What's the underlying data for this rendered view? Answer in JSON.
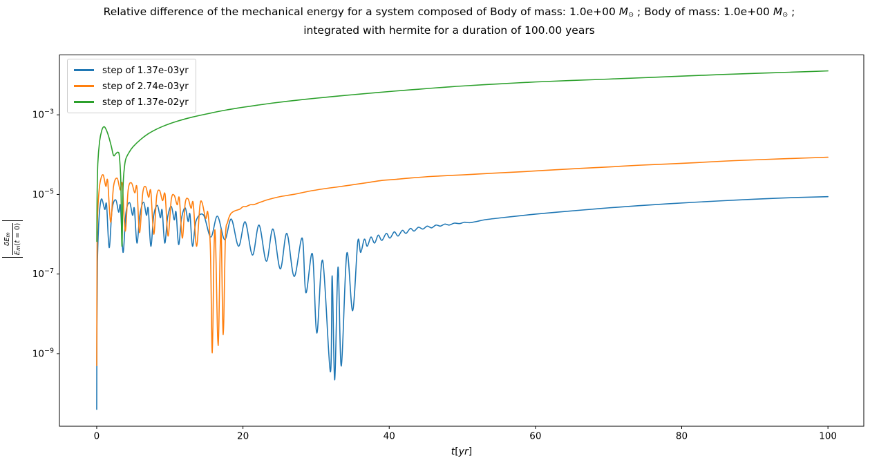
{
  "title": {
    "line1_a": "Relative difference of the mechanical energy for a system composed of Body of mass: 1.0e+00 ",
    "mass_symbol": "M",
    "sun_symbol": "⊙",
    "line1_b": " ; Body of mass: 1.0e+00 ",
    "line1_c": " ;",
    "line2": "integrated with hermite for a duration of 100.00 years"
  },
  "legend": {
    "items": [
      {
        "label": "step of 1.37e-03yr",
        "color": "#1f77b4"
      },
      {
        "label": "step of 2.74e-03yr",
        "color": "#ff7f0e"
      },
      {
        "label": "step of 1.37e-02yr",
        "color": "#2ca02c"
      }
    ]
  },
  "ylabel": {
    "bar": "|",
    "num_main": "δE",
    "num_sub": "m",
    "den_main": "E",
    "den_sub": "m",
    "den_open": "(",
    "den_t": "t",
    "den_rest": " = 0)"
  },
  "xlabel": {
    "t": "t",
    "open": "[",
    "unit": "yr",
    "close": "]"
  },
  "chart_data": {
    "type": "line",
    "title": "Relative difference of the mechanical energy for a system composed of Body of mass: 1.0e+00 M⊙ ; Body of mass: 1.0e+00 M⊙ ; integrated with hermite for a duration of 100.00 years",
    "xlabel": "t[yr]",
    "ylabel": "|δE_m / E_m(t=0)|",
    "legend_position": "upper left",
    "grid": false,
    "x_axis": {
      "min": -5.1,
      "max": 104.9,
      "ticks": [
        0,
        20,
        40,
        60,
        80,
        100
      ]
    },
    "y_axis": {
      "scale": "log",
      "min": 1.5e-11,
      "max": 0.032,
      "ticks": [
        {
          "value": 0.001,
          "base": "10",
          "exponent": "−3"
        },
        {
          "value": 1e-05,
          "base": "10",
          "exponent": "−5"
        },
        {
          "value": 1e-07,
          "base": "10",
          "exponent": "−7"
        },
        {
          "value": 1e-09,
          "base": "10",
          "exponent": "−9"
        }
      ]
    },
    "series": [
      {
        "name": "step of 1.37e-03yr",
        "color": "#1f77b4",
        "points": [
          [
            0.0014,
            4e-11
          ],
          [
            0.03,
            5e-09
          ],
          [
            0.1,
            2e-07
          ],
          [
            0.25,
            1.5e-06
          ],
          [
            0.45,
            5e-06
          ],
          [
            0.7,
            7.7e-06
          ],
          [
            1.1,
            4.2e-06
          ],
          [
            1.35,
            5.5e-06
          ],
          [
            1.7,
            4.6e-07
          ],
          [
            2.1,
            4.2e-06
          ],
          [
            2.6,
            7.3e-06
          ],
          [
            3.0,
            3.6e-06
          ],
          [
            3.25,
            5e-06
          ],
          [
            3.6,
            3.5e-07
          ],
          [
            4.0,
            3.5e-06
          ],
          [
            4.5,
            6.2e-06
          ],
          [
            4.9,
            3e-06
          ],
          [
            5.15,
            4.4e-06
          ],
          [
            5.5,
            6e-07
          ],
          [
            5.9,
            3e-06
          ],
          [
            6.4,
            6.4e-06
          ],
          [
            6.8,
            3e-06
          ],
          [
            7.05,
            4.4e-06
          ],
          [
            7.4,
            5e-07
          ],
          [
            7.8,
            3e-06
          ],
          [
            8.3,
            5.3e-06
          ],
          [
            8.7,
            2.6e-06
          ],
          [
            8.95,
            4e-06
          ],
          [
            9.3,
            6e-07
          ],
          [
            9.7,
            2.7e-06
          ],
          [
            10.2,
            5e-06
          ],
          [
            10.6,
            2.3e-06
          ],
          [
            10.85,
            3.6e-06
          ],
          [
            11.2,
            5.5e-07
          ],
          [
            11.6,
            2.5e-06
          ],
          [
            12.1,
            4.6e-06
          ],
          [
            12.5,
            2.1e-06
          ],
          [
            12.75,
            3.2e-06
          ],
          [
            13.1,
            5e-07
          ],
          [
            13.6,
            2.2e-06
          ],
          [
            14.6,
            3.05e-06
          ],
          [
            15.6,
            8.5e-07
          ],
          [
            16.5,
            2.85e-06
          ],
          [
            17.5,
            7.3e-07
          ],
          [
            18.4,
            2.4e-06
          ],
          [
            19.4,
            5e-07
          ],
          [
            20.3,
            2.05e-06
          ],
          [
            21.3,
            3e-07
          ],
          [
            22.2,
            1.7e-06
          ],
          [
            23.2,
            2.1e-07
          ],
          [
            24.1,
            1.35e-06
          ],
          [
            25.1,
            1.35e-07
          ],
          [
            26.0,
            1.05e-06
          ],
          [
            27.0,
            8.7e-08
          ],
          [
            28.1,
            8e-07
          ],
          [
            28.6,
            3.4e-08
          ],
          [
            29.5,
            3.2e-07
          ],
          [
            30.1,
            3.3e-09
          ],
          [
            30.9,
            2.2e-07
          ],
          [
            31.95,
            3.5e-10
          ],
          [
            32.2,
            9e-08
          ],
          [
            32.55,
            2.2e-10
          ],
          [
            33.0,
            1.5e-07
          ],
          [
            33.45,
            4.9e-10
          ],
          [
            34.2,
            3.3e-07
          ],
          [
            35.0,
            1.2e-08
          ],
          [
            35.7,
            6.5e-07
          ],
          [
            36.1,
            3.5e-07
          ],
          [
            36.6,
            7.5e-07
          ],
          [
            37.0,
            5e-07
          ],
          [
            37.5,
            8.5e-07
          ],
          [
            38.0,
            6e-07
          ],
          [
            38.5,
            9.5e-07
          ],
          [
            39.0,
            7e-07
          ],
          [
            39.6,
            1.05e-06
          ],
          [
            40.1,
            8e-07
          ],
          [
            40.7,
            1.15e-06
          ],
          [
            41.2,
            9e-07
          ],
          [
            41.8,
            1.25e-06
          ],
          [
            42.3,
            1.05e-06
          ],
          [
            42.9,
            1.4e-06
          ],
          [
            43.4,
            1.2e-06
          ],
          [
            44.0,
            1.5e-06
          ],
          [
            44.6,
            1.35e-06
          ],
          [
            45.2,
            1.6e-06
          ],
          [
            45.8,
            1.45e-06
          ],
          [
            46.4,
            1.7e-06
          ],
          [
            47.0,
            1.6e-06
          ],
          [
            47.6,
            1.8e-06
          ],
          [
            48.2,
            1.7e-06
          ],
          [
            48.9,
            1.9e-06
          ],
          [
            49.6,
            1.85e-06
          ],
          [
            50.3,
            2e-06
          ],
          [
            51,
            1.95e-06
          ],
          [
            52,
            2.1e-06
          ],
          [
            53,
            2.3e-06
          ],
          [
            55,
            2.55e-06
          ],
          [
            57,
            2.8e-06
          ],
          [
            60,
            3.2e-06
          ],
          [
            63,
            3.6e-06
          ],
          [
            66,
            4e-06
          ],
          [
            70,
            4.6e-06
          ],
          [
            74,
            5.2e-06
          ],
          [
            78,
            5.8e-06
          ],
          [
            82,
            6.4e-06
          ],
          [
            86,
            7e-06
          ],
          [
            90,
            7.6e-06
          ],
          [
            95,
            8.3e-06
          ],
          [
            100,
            8.8e-06
          ]
        ]
      },
      {
        "name": "step of 2.74e-03yr",
        "color": "#ff7f0e",
        "points": [
          [
            0.0027,
            5e-10
          ],
          [
            0.05,
            5e-07
          ],
          [
            0.15,
            4e-06
          ],
          [
            0.35,
            1.4e-05
          ],
          [
            0.6,
            2.6e-05
          ],
          [
            0.9,
            3.05e-05
          ],
          [
            1.25,
            1.6e-05
          ],
          [
            1.5,
            2.2e-05
          ],
          [
            1.9,
            2e-06
          ],
          [
            2.3,
            1.6e-05
          ],
          [
            2.8,
            2.55e-05
          ],
          [
            3.2,
            1.3e-05
          ],
          [
            3.5,
            1.8e-05
          ],
          [
            3.9,
            1.2e-06
          ],
          [
            4.3,
            1.3e-05
          ],
          [
            4.75,
            1.95e-05
          ],
          [
            5.2,
            1.1e-05
          ],
          [
            5.5,
            1.5e-05
          ],
          [
            5.85,
            1.1e-06
          ],
          [
            6.3,
            1.1e-05
          ],
          [
            6.7,
            1.55e-05
          ],
          [
            7.1,
            8.5e-06
          ],
          [
            7.4,
            1.2e-05
          ],
          [
            7.8,
            1e-06
          ],
          [
            8.2,
            9e-06
          ],
          [
            8.6,
            1.25e-05
          ],
          [
            9.0,
            7e-06
          ],
          [
            9.35,
            1e-05
          ],
          [
            9.75,
            9e-07
          ],
          [
            10.2,
            7.5e-06
          ],
          [
            10.6,
            9.5e-06
          ],
          [
            11.0,
            5.5e-06
          ],
          [
            11.3,
            8e-06
          ],
          [
            11.7,
            8e-07
          ],
          [
            12.1,
            6e-06
          ],
          [
            12.5,
            7.7e-06
          ],
          [
            12.9,
            4.5e-06
          ],
          [
            13.2,
            6e-06
          ],
          [
            13.65,
            5e-07
          ],
          [
            14.1,
            5e-06
          ],
          [
            14.4,
            6.3e-06
          ],
          [
            14.9,
            2.5e-06
          ],
          [
            15.2,
            3.5e-06
          ],
          [
            15.55,
            4e-07
          ],
          [
            15.8,
            1.05e-09
          ],
          [
            16.05,
            5e-07
          ],
          [
            16.25,
            7e-07
          ],
          [
            16.6,
            1.6e-09
          ],
          [
            16.9,
            6e-07
          ],
          [
            17.05,
            7e-07
          ],
          [
            17.3,
            3e-09
          ],
          [
            17.6,
            8e-07
          ],
          [
            17.9,
            2e-06
          ],
          [
            18.3,
            3.2e-06
          ],
          [
            18.8,
            3.8e-06
          ],
          [
            19.3,
            4.1e-06
          ],
          [
            19.6,
            4.3e-06
          ],
          [
            20.0,
            4.9e-06
          ],
          [
            20.4,
            4.95e-06
          ],
          [
            21.0,
            5.5e-06
          ],
          [
            21.5,
            5.55e-06
          ],
          [
            22.2,
            6.2e-06
          ],
          [
            23.2,
            7.2e-06
          ],
          [
            24.2,
            8.1e-06
          ],
          [
            25.2,
            8.9e-06
          ],
          [
            26.3,
            9.6e-06
          ],
          [
            27.5,
            1.05e-05
          ],
          [
            29,
            1.2e-05
          ],
          [
            31,
            1.38e-05
          ],
          [
            33,
            1.55e-05
          ],
          [
            35,
            1.75e-05
          ],
          [
            37,
            1.98e-05
          ],
          [
            39,
            2.25e-05
          ],
          [
            41,
            2.4e-05
          ],
          [
            43,
            2.6e-05
          ],
          [
            46,
            2.85e-05
          ],
          [
            50,
            3.1e-05
          ],
          [
            54,
            3.4e-05
          ],
          [
            58,
            3.7e-05
          ],
          [
            62,
            4.1e-05
          ],
          [
            66,
            4.5e-05
          ],
          [
            70,
            4.9e-05
          ],
          [
            74,
            5.4e-05
          ],
          [
            78,
            5.8e-05
          ],
          [
            82,
            6.3e-05
          ],
          [
            86,
            6.9e-05
          ],
          [
            90,
            7.4e-05
          ],
          [
            95,
            8e-05
          ],
          [
            100,
            8.6e-05
          ]
        ]
      },
      {
        "name": "step of 1.37e-02yr",
        "color": "#2ca02c",
        "points": [
          [
            0.014,
            6.6e-07
          ],
          [
            0.05,
            8e-06
          ],
          [
            0.15,
            6e-05
          ],
          [
            0.4,
            0.00022
          ],
          [
            0.7,
            0.00041
          ],
          [
            0.95,
            0.0005
          ],
          [
            1.2,
            0.00046
          ],
          [
            1.6,
            0.0003
          ],
          [
            2.0,
            0.00016
          ],
          [
            2.3,
            9.5e-05
          ],
          [
            2.6,
            0.000105
          ],
          [
            2.9,
            0.000115
          ],
          [
            3.1,
            9e-05
          ],
          [
            3.3,
            2e-05
          ],
          [
            3.45,
            5e-07
          ],
          [
            3.6,
            1.5e-05
          ],
          [
            3.8,
            5e-05
          ],
          [
            4.0,
            8e-05
          ],
          [
            4.5,
            0.00012
          ],
          [
            5,
            0.00016
          ],
          [
            6,
            0.00024
          ],
          [
            7,
            0.00033
          ],
          [
            8,
            0.00042
          ],
          [
            9,
            0.00051
          ],
          [
            10,
            0.0006
          ],
          [
            11,
            0.00069
          ],
          [
            12,
            0.00078
          ],
          [
            13,
            0.00087
          ],
          [
            14,
            0.00096
          ],
          [
            15,
            0.00105
          ],
          [
            16,
            0.00115
          ],
          [
            17,
            0.00125
          ],
          [
            18,
            0.00135
          ],
          [
            19,
            0.00145
          ],
          [
            20,
            0.00155
          ],
          [
            22,
            0.00175
          ],
          [
            24,
            0.00197
          ],
          [
            26,
            0.00218
          ],
          [
            28,
            0.0024
          ],
          [
            30,
            0.00262
          ],
          [
            32,
            0.00284
          ],
          [
            34,
            0.00308
          ],
          [
            36,
            0.00332
          ],
          [
            38,
            0.00358
          ],
          [
            40,
            0.00385
          ],
          [
            42,
            0.00412
          ],
          [
            44,
            0.0044
          ],
          [
            46,
            0.0047
          ],
          [
            48,
            0.005
          ],
          [
            50,
            0.0053
          ],
          [
            55,
            0.006
          ],
          [
            60,
            0.0067
          ],
          [
            65,
            0.0073
          ],
          [
            70,
            0.0079
          ],
          [
            75,
            0.0086
          ],
          [
            80,
            0.0094
          ],
          [
            85,
            0.0102
          ],
          [
            90,
            0.011
          ],
          [
            95,
            0.0118
          ],
          [
            100,
            0.0127
          ]
        ]
      }
    ]
  }
}
